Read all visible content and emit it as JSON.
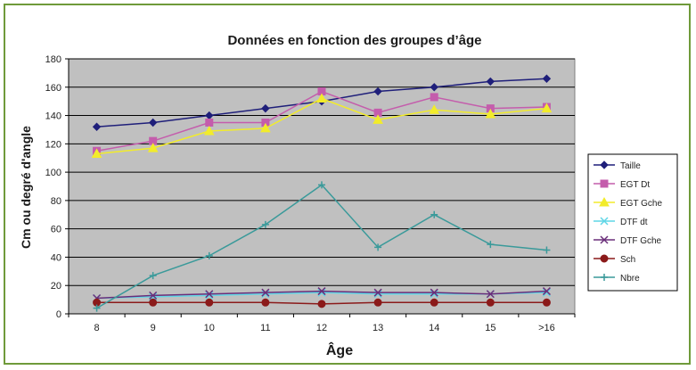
{
  "chart_data": {
    "type": "line",
    "title": "Données en fonction des groupes d’âge",
    "xlabel": "Âge",
    "ylabel": "Cm ou degré d'angle",
    "categories": [
      "8",
      "9",
      "10",
      "11",
      "12",
      "13",
      "14",
      "15",
      ">16"
    ],
    "ylim": [
      0,
      180
    ],
    "yticks": [
      "0",
      "20",
      "40",
      "60",
      "80",
      "100",
      "120",
      "140",
      "160",
      "180"
    ],
    "grid": true,
    "legend_position": "right",
    "plot_background": "#c0c0c0",
    "series": [
      {
        "name": "Taille",
        "color": "#1f1f7a",
        "marker": "diamond",
        "values": [
          132,
          135,
          140,
          145,
          150,
          157,
          160,
          164,
          166
        ]
      },
      {
        "name": "EGT Dt",
        "color": "#c45dac",
        "marker": "square",
        "values": [
          115,
          122,
          135,
          135,
          157,
          142,
          153,
          145,
          146
        ]
      },
      {
        "name": "EGT Gche",
        "color": "#f2ec2a",
        "marker": "triangle",
        "values": [
          113,
          117,
          129,
          131,
          152,
          137,
          144,
          141,
          145
        ]
      },
      {
        "name": "DTF dt",
        "color": "#5fd6e6",
        "marker": "x",
        "values": [
          11,
          12,
          13,
          14,
          15,
          14,
          14,
          14,
          15
        ]
      },
      {
        "name": "DTF Gche",
        "color": "#6a2e7a",
        "marker": "x",
        "values": [
          11,
          13,
          14,
          15,
          16,
          15,
          15,
          14,
          16
        ]
      },
      {
        "name": "Sch",
        "color": "#8b1a1a",
        "marker": "circle",
        "values": [
          8,
          8,
          8,
          8,
          7,
          8,
          8,
          8,
          8
        ]
      },
      {
        "name": "Nbre",
        "color": "#3a9a9a",
        "marker": "plus",
        "values": [
          4,
          27,
          41,
          63,
          91,
          47,
          70,
          49,
          45
        ]
      }
    ]
  }
}
